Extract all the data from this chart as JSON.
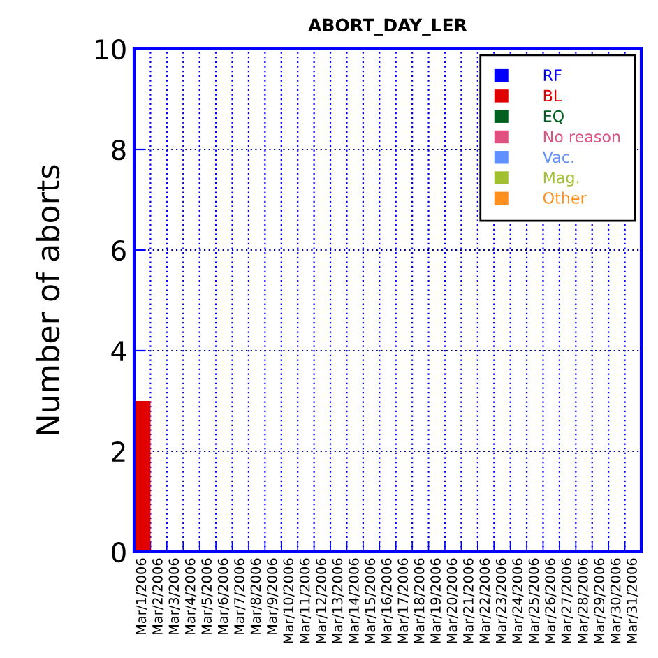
{
  "chart_data": {
    "type": "bar",
    "title": "ABORT_DAY_LER",
    "ylabel": "Number of aborts",
    "categories": [
      "Mar/1/2006",
      "Mar/2/2006",
      "Mar/3/2006",
      "Mar/4/2006",
      "Mar/5/2006",
      "Mar/6/2006",
      "Mar/7/2006",
      "Mar/8/2006",
      "Mar/9/2006",
      "Mar/10/2006",
      "Mar/11/2006",
      "Mar/12/2006",
      "Mar/13/2006",
      "Mar/14/2006",
      "Mar/15/2006",
      "Mar/16/2006",
      "Mar/17/2006",
      "Mar/18/2006",
      "Mar/19/2006",
      "Mar/20/2006",
      "Mar/21/2006",
      "Mar/22/2006",
      "Mar/23/2006",
      "Mar/24/2006",
      "Mar/25/2006",
      "Mar/26/2006",
      "Mar/27/2006",
      "Mar/28/2006",
      "Mar/29/2006",
      "Mar/30/2006",
      "Mar/31/2006"
    ],
    "series": [
      {
        "name": "RF",
        "color": "#0000ff",
        "values": [
          0,
          0,
          0,
          0,
          0,
          0,
          0,
          0,
          0,
          0,
          0,
          0,
          0,
          0,
          0,
          0,
          0,
          0,
          0,
          0,
          0,
          0,
          0,
          0,
          0,
          0,
          0,
          0,
          0,
          0,
          0
        ]
      },
      {
        "name": "BL",
        "color": "#e00000",
        "values": [
          3,
          0,
          0,
          0,
          0,
          0,
          0,
          0,
          0,
          0,
          0,
          0,
          0,
          0,
          0,
          0,
          0,
          0,
          0,
          0,
          0,
          0,
          0,
          0,
          0,
          0,
          0,
          0,
          0,
          0,
          0
        ]
      },
      {
        "name": "EQ",
        "color": "#006020",
        "values": [
          0,
          0,
          0,
          0,
          0,
          0,
          0,
          0,
          0,
          0,
          0,
          0,
          0,
          0,
          0,
          0,
          0,
          0,
          0,
          0,
          0,
          0,
          0,
          0,
          0,
          0,
          0,
          0,
          0,
          0,
          0
        ]
      },
      {
        "name": "No reason",
        "color": "#e05080",
        "values": [
          0,
          0,
          0,
          0,
          0,
          0,
          0,
          0,
          0,
          0,
          0,
          0,
          0,
          0,
          0,
          0,
          0,
          0,
          0,
          0,
          0,
          0,
          0,
          0,
          0,
          0,
          0,
          0,
          0,
          0,
          0
        ]
      },
      {
        "name": "Vac.",
        "color": "#6090ff",
        "values": [
          0,
          0,
          0,
          0,
          0,
          0,
          0,
          0,
          0,
          0,
          0,
          0,
          0,
          0,
          0,
          0,
          0,
          0,
          0,
          0,
          0,
          0,
          0,
          0,
          0,
          0,
          0,
          0,
          0,
          0,
          0
        ]
      },
      {
        "name": "Mag.",
        "color": "#a0c030",
        "values": [
          0,
          0,
          0,
          0,
          0,
          0,
          0,
          0,
          0,
          0,
          0,
          0,
          0,
          0,
          0,
          0,
          0,
          0,
          0,
          0,
          0,
          0,
          0,
          0,
          0,
          0,
          0,
          0,
          0,
          0,
          0
        ]
      },
      {
        "name": "Other",
        "color": "#ff9020",
        "values": [
          0,
          0,
          0,
          0,
          0,
          0,
          0,
          0,
          0,
          0,
          0,
          0,
          0,
          0,
          0,
          0,
          0,
          0,
          0,
          0,
          0,
          0,
          0,
          0,
          0,
          0,
          0,
          0,
          0,
          0,
          0
        ]
      }
    ],
    "stacked": true,
    "ylim": [
      0,
      10
    ],
    "yticks": [
      0,
      2,
      4,
      6,
      8,
      10
    ],
    "grid": true,
    "legend": "top right"
  }
}
